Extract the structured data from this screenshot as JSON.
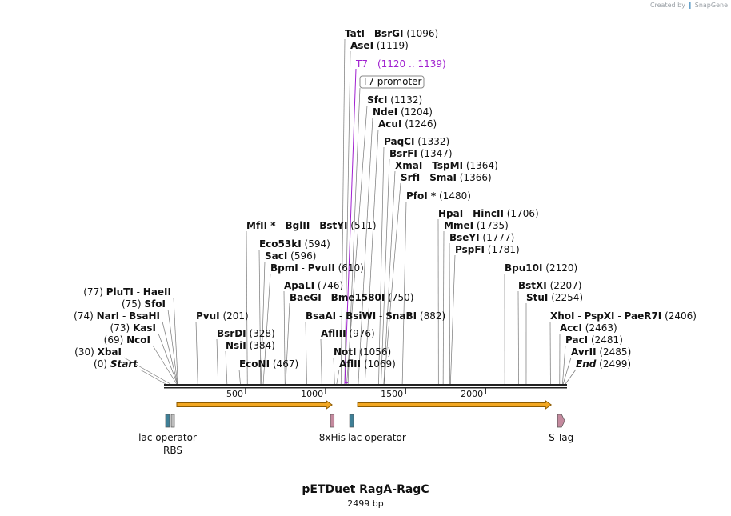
{
  "brand": {
    "prefix": "Created by",
    "name": "SnapGene"
  },
  "plasmid": {
    "name": "pETDuet RagA-RagC",
    "length_label": "2499 bp",
    "length": 2499
  },
  "ruler": {
    "ticks": [
      {
        "pos": 500,
        "label": "500"
      },
      {
        "pos": 1000,
        "label": "1000"
      },
      {
        "pos": 1500,
        "label": "1500"
      },
      {
        "pos": 2000,
        "label": "2000"
      }
    ]
  },
  "sites": [
    {
      "names": [
        "Start"
      ],
      "pos_label": "(0)",
      "pos": 0,
      "italic": true
    },
    {
      "names": [
        "XbaI"
      ],
      "pos_label": "(30)",
      "pos": 30
    },
    {
      "names": [
        "NcoI"
      ],
      "pos_label": "(69)",
      "pos": 69
    },
    {
      "names": [
        "KasI"
      ],
      "pos_label": "(73)",
      "pos": 73
    },
    {
      "names": [
        "NarI",
        "BsaHI"
      ],
      "pos_label": "(74)",
      "pos": 74
    },
    {
      "names": [
        "SfoI"
      ],
      "pos_label": "(75)",
      "pos": 75
    },
    {
      "names": [
        "PluTI",
        "HaeII"
      ],
      "pos_label": "(77)",
      "pos": 77
    },
    {
      "names": [
        "PvuI"
      ],
      "pos_label": "(201)",
      "pos": 201
    },
    {
      "names": [
        "BsrDI"
      ],
      "pos_label": "(328)",
      "pos": 328
    },
    {
      "names": [
        "NsiI"
      ],
      "pos_label": "(384)",
      "pos": 384
    },
    {
      "names": [
        "EcoNI"
      ],
      "pos_label": "(467)",
      "pos": 467
    },
    {
      "names": [
        "MfII *",
        "BglII",
        "BstYI"
      ],
      "pos_label": "(511)",
      "pos": 511
    },
    {
      "names": [
        "Eco53kI"
      ],
      "pos_label": "(594)",
      "pos": 594
    },
    {
      "names": [
        "SacI"
      ],
      "pos_label": "(596)",
      "pos": 596
    },
    {
      "names": [
        "BpmI",
        "PvuII"
      ],
      "pos_label": "(610)",
      "pos": 610
    },
    {
      "names": [
        "ApaLI"
      ],
      "pos_label": "(746)",
      "pos": 746
    },
    {
      "names": [
        "BaeGI",
        "Bme1580I"
      ],
      "pos_label": "(750)",
      "pos": 750
    },
    {
      "names": [
        "BsaAI",
        "BsiWI",
        "SnaBI"
      ],
      "pos_label": "(882)",
      "pos": 882
    },
    {
      "names": [
        "AflIII"
      ],
      "pos_label": "(976)",
      "pos": 976
    },
    {
      "names": [
        "NotI"
      ],
      "pos_label": "(1056)",
      "pos": 1056
    },
    {
      "names": [
        "AflII"
      ],
      "pos_label": "(1069)",
      "pos": 1069
    },
    {
      "names": [
        "TatI",
        "BsrGI"
      ],
      "pos_label": "(1096)",
      "pos": 1096
    },
    {
      "names": [
        "AseI"
      ],
      "pos_label": "(1119)",
      "pos": 1119
    },
    {
      "names": [
        "SfcI"
      ],
      "pos_label": "(1132)",
      "pos": 1132
    },
    {
      "names": [
        "NdeI"
      ],
      "pos_label": "(1204)",
      "pos": 1204
    },
    {
      "names": [
        "AcuI"
      ],
      "pos_label": "(1246)",
      "pos": 1246
    },
    {
      "names": [
        "PaqCI"
      ],
      "pos_label": "(1332)",
      "pos": 1332
    },
    {
      "names": [
        "BsrFI"
      ],
      "pos_label": "(1347)",
      "pos": 1347
    },
    {
      "names": [
        "XmaI",
        "TspMI"
      ],
      "pos_label": "(1364)",
      "pos": 1364
    },
    {
      "names": [
        "SrfI",
        "SmaI"
      ],
      "pos_label": "(1366)",
      "pos": 1366
    },
    {
      "names": [
        "PfoI *"
      ],
      "pos_label": "(1480)",
      "pos": 1480
    },
    {
      "names": [
        "HpaI",
        "HincII"
      ],
      "pos_label": "(1706)",
      "pos": 1706
    },
    {
      "names": [
        "MmeI"
      ],
      "pos_label": "(1735)",
      "pos": 1735
    },
    {
      "names": [
        "BseYI"
      ],
      "pos_label": "(1777)",
      "pos": 1777
    },
    {
      "names": [
        "PspFI"
      ],
      "pos_label": "(1781)",
      "pos": 1781
    },
    {
      "names": [
        "Bpu10I"
      ],
      "pos_label": "(2120)",
      "pos": 2120
    },
    {
      "names": [
        "BstXI"
      ],
      "pos_label": "(2207)",
      "pos": 2207
    },
    {
      "names": [
        "StuI"
      ],
      "pos_label": "(2254)",
      "pos": 2254
    },
    {
      "names": [
        "XhoI",
        "PspXI",
        "PaeR7I"
      ],
      "pos_label": "(2406)",
      "pos": 2406
    },
    {
      "names": [
        "AccI"
      ],
      "pos_label": "(2463)",
      "pos": 2463
    },
    {
      "names": [
        "PacI"
      ],
      "pos_label": "(2481)",
      "pos": 2481
    },
    {
      "names": [
        "AvrII"
      ],
      "pos_label": "(2485)",
      "pos": 2485
    },
    {
      "names": [
        "End"
      ],
      "pos_label": "(2499)",
      "pos": 2499,
      "italic": true
    }
  ],
  "primer": {
    "name": "T7",
    "range_label": "(1120 .. 1139)",
    "start": 1120,
    "end": 1139,
    "color": "#a020d0"
  },
  "promoter_label": "T7 promoter",
  "cds_arrows": [
    {
      "start": 70,
      "end": 1040
    },
    {
      "start": 1200,
      "end": 2410
    }
  ],
  "features": [
    {
      "label": "lac operator",
      "start": 0,
      "end": 25,
      "color": "#3f7f96"
    },
    {
      "label": "RBS",
      "start": 35,
      "end": 45,
      "color": "#bdbdbd"
    },
    {
      "label": "8xHis",
      "start": 1030,
      "end": 1053,
      "color": "#c48a9e"
    },
    {
      "label": "lac operator",
      "start": 1150,
      "end": 1175,
      "color": "#3f7f96"
    },
    {
      "label": "S-Tag",
      "start": 2450,
      "end": 2495,
      "color": "#c48a9e"
    }
  ],
  "colors": {
    "backbone": "#222222",
    "arrow_fill": "#f2a722",
    "arrow_edge": "#8c5a00",
    "leader": "#777777"
  }
}
